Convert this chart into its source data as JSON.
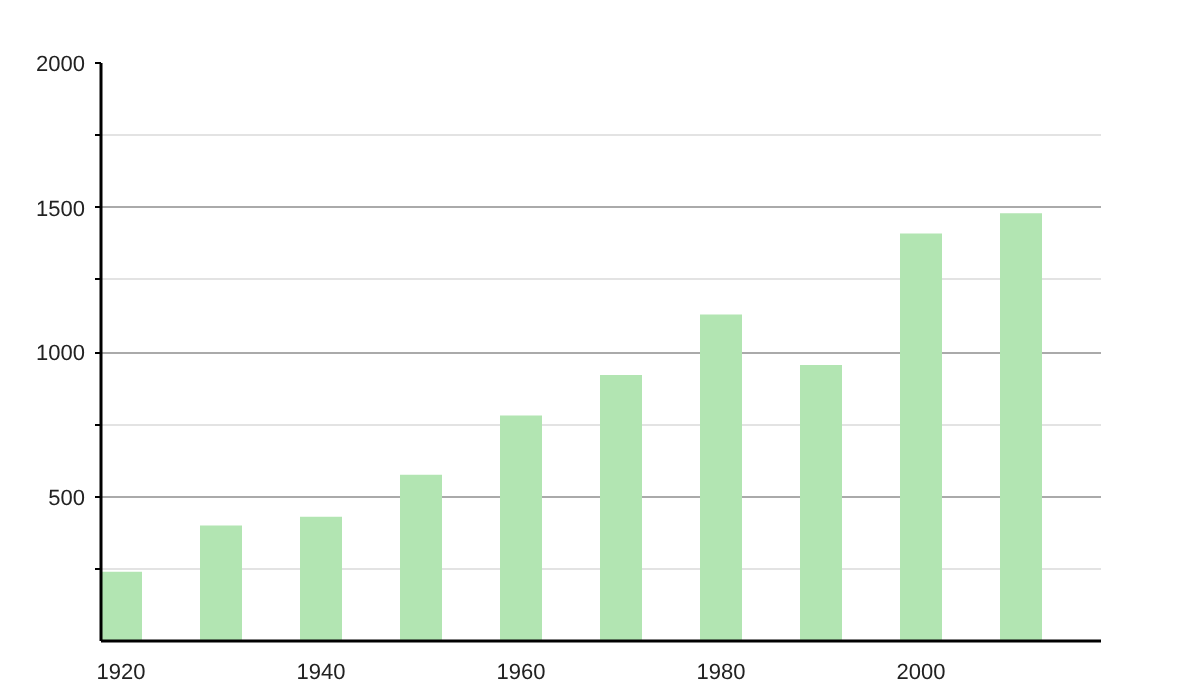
{
  "chart_data": {
    "type": "bar",
    "x": [
      1920,
      1930,
      1940,
      1950,
      1960,
      1970,
      1980,
      1990,
      2000,
      2010
    ],
    "values": [
      240,
      400,
      430,
      575,
      780,
      920,
      1130,
      955,
      1410,
      1480
    ],
    "color": "#b2e5b2",
    "xlim": [
      1918,
      2018
    ],
    "xticks": [
      1920,
      1940,
      1960,
      1980,
      2000
    ],
    "ylim": [
      0,
      2000
    ],
    "yticks": [
      {
        "value": 250,
        "label": null
      },
      500,
      {
        "value": 750,
        "label": null
      },
      1000,
      {
        "value": 1250,
        "label": null
      },
      1500,
      {
        "value": 1750,
        "label": null
      },
      2000
    ],
    "grid": "y"
  }
}
